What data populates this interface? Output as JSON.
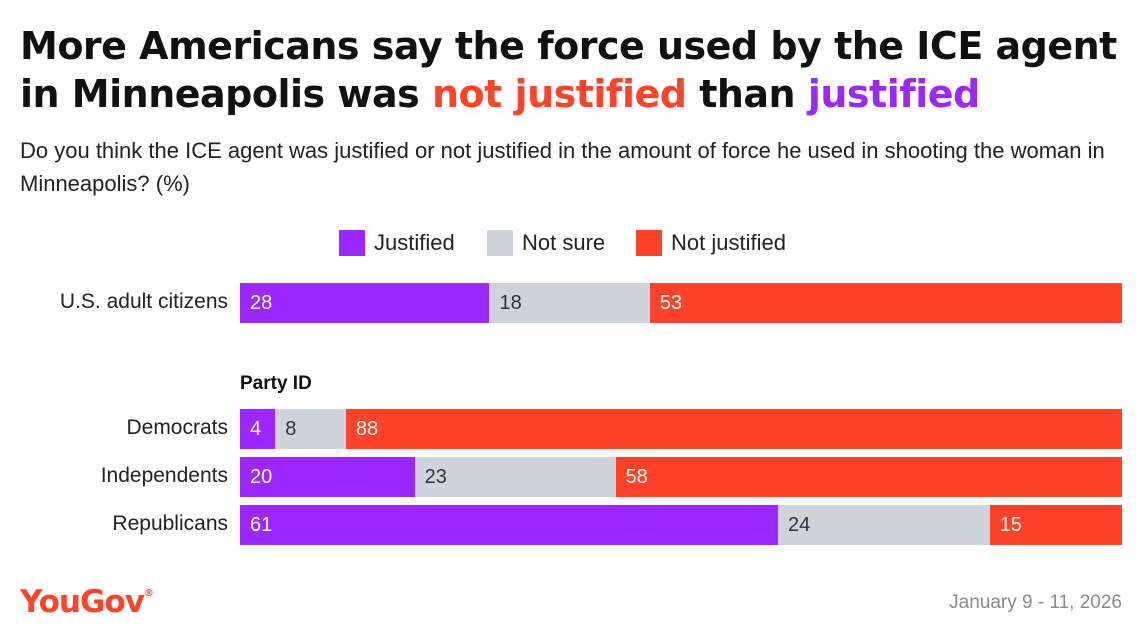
{
  "title": {
    "part1": "More Americans say the force used by the ICE agent in Minneapolis was ",
    "highlight_not": "not justified",
    "part2": " than ",
    "highlight_just": "justified"
  },
  "subtitle": "Do you think the ICE agent was justified or not justified in the amount of force he used in shooting the woman in Minneapolis? (%)",
  "legend": [
    {
      "label": "Justified",
      "color": "#9C27FF"
    },
    {
      "label": "Not sure",
      "color": "#CFD3DB"
    },
    {
      "label": "Not justified",
      "color": "#FF4329"
    }
  ],
  "group_label": "Party ID",
  "footer": {
    "logo": "YouGov",
    "logo_mark": "®",
    "date": "January 9 - 11, 2026"
  },
  "colors": {
    "justified": "#9C27FF",
    "not_sure": "#CFD3DB",
    "not_justified": "#FF4329",
    "label_light": "#FFFFFF",
    "label_dark": "#333333"
  },
  "chart_data": {
    "type": "bar",
    "orientation": "horizontal",
    "stacked": true,
    "categories": [
      "U.S. adult citizens",
      "Democrats",
      "Independents",
      "Republicans"
    ],
    "series": [
      {
        "name": "Justified",
        "values": [
          28,
          4,
          20,
          61
        ]
      },
      {
        "name": "Not sure",
        "values": [
          18,
          8,
          23,
          24
        ]
      },
      {
        "name": "Not justified",
        "values": [
          53,
          88,
          58,
          15
        ]
      }
    ],
    "title": "More Americans say the force used by the ICE agent in Minneapolis was not justified than justified",
    "xlabel": "",
    "ylabel": "",
    "legend_position": "top",
    "grid": false
  }
}
